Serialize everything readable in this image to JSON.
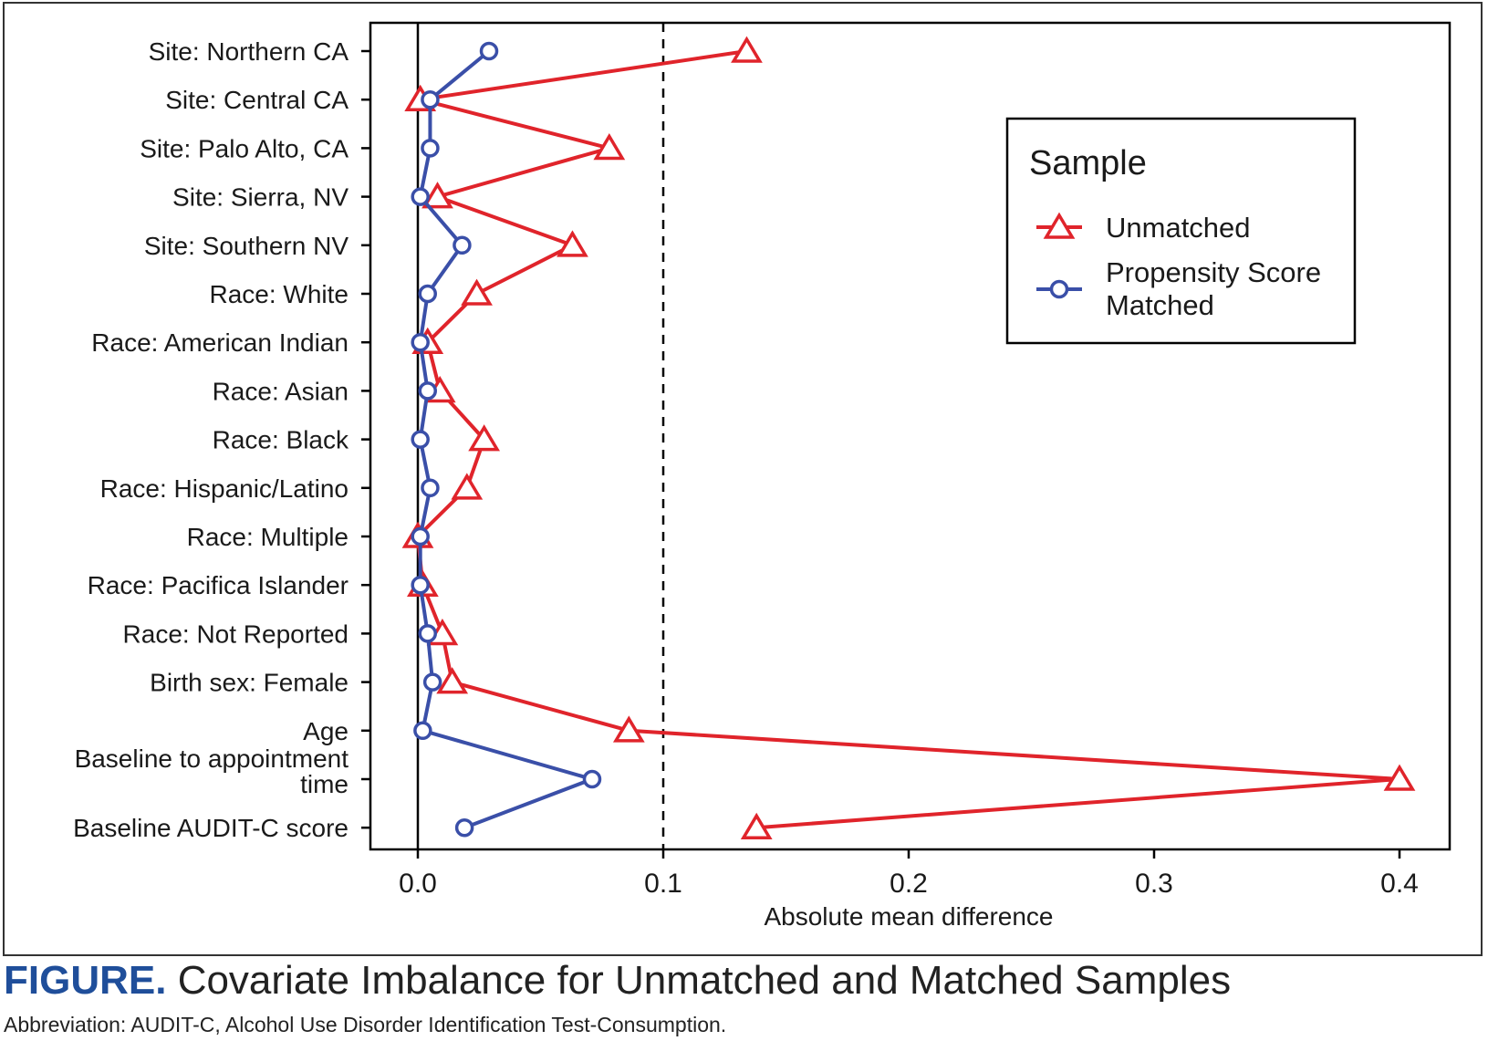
{
  "caption": {
    "label": "FIGURE.",
    "title": "Covariate Imbalance for Unmatched and Matched Samples",
    "abbreviation": "Abbreviation: AUDIT-C, Alcohol Use Disorder Identification Test-Consumption."
  },
  "colors": {
    "unmatched": "#e0242b",
    "matched": "#3a4fa8",
    "caption_accent": "#1f4e9a"
  },
  "chart_data": {
    "type": "line",
    "orientation": "horizontal",
    "title": "",
    "xlabel": "Absolute mean difference",
    "ylabel": "",
    "xlim": [
      -0.02,
      0.42
    ],
    "xticks": [
      0.0,
      0.1,
      0.2,
      0.3,
      0.4
    ],
    "xtick_labels": [
      "0.0",
      "0.1",
      "0.2",
      "0.3",
      "0.4"
    ],
    "reference_lines": [
      {
        "x": 0.0,
        "style": "solid"
      },
      {
        "x": 0.1,
        "style": "dashed"
      }
    ],
    "grid": false,
    "legend": {
      "title": "Sample",
      "placement": "top-right"
    },
    "categories": [
      "Site: Northern CA",
      "Site: Central CA",
      "Site: Palo Alto, CA",
      "Site: Sierra, NV",
      "Site: Southern NV",
      "Race: White",
      "Race: American Indian",
      "Race: Asian",
      "Race: Black",
      "Race: Hispanic/Latino",
      "Race: Multiple",
      "Race: Pacifica Islander",
      "Race: Not Reported",
      "Birth sex: Female",
      "Age",
      "Baseline to appointment time",
      "Baseline AUDIT-C score"
    ],
    "category_lines": [
      [
        "Site: Northern CA"
      ],
      [
        "Site: Central CA"
      ],
      [
        "Site: Palo Alto, CA"
      ],
      [
        "Site: Sierra, NV"
      ],
      [
        "Site: Southern NV"
      ],
      [
        "Race: White"
      ],
      [
        "Race: American Indian"
      ],
      [
        "Race: Asian"
      ],
      [
        "Race: Black"
      ],
      [
        "Race: Hispanic/Latino"
      ],
      [
        "Race: Multiple"
      ],
      [
        "Race: Pacifica Islander"
      ],
      [
        "Race: Not Reported"
      ],
      [
        "Birth sex: Female"
      ],
      [
        "Age"
      ],
      [
        "Baseline to appointment",
        "time"
      ],
      [
        "Baseline AUDIT-C score"
      ]
    ],
    "series": [
      {
        "name": "Unmatched",
        "marker": "triangle",
        "color": "#e0242b",
        "values": [
          0.134,
          0.001,
          0.078,
          0.008,
          0.063,
          0.024,
          0.004,
          0.009,
          0.027,
          0.02,
          0.0,
          0.002,
          0.01,
          0.014,
          0.086,
          0.4,
          0.138
        ]
      },
      {
        "name": "Propensity Score Matched",
        "legend_lines": [
          "Propensity Score",
          "Matched"
        ],
        "marker": "circle",
        "color": "#3a4fa8",
        "values": [
          0.029,
          0.005,
          0.005,
          0.001,
          0.018,
          0.004,
          0.001,
          0.004,
          0.001,
          0.005,
          0.001,
          0.001,
          0.004,
          0.006,
          0.002,
          0.071,
          0.019
        ]
      }
    ]
  }
}
